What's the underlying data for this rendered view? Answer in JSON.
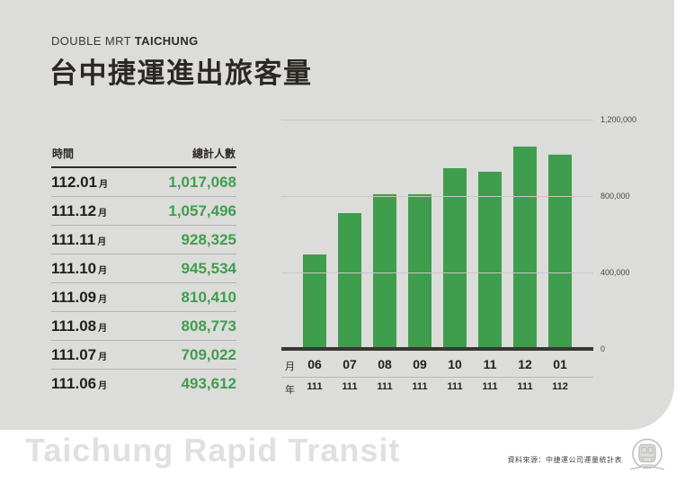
{
  "header": {
    "kicker_regular": "DOUBLE MRT",
    "kicker_bold": "TAICHUNG",
    "title": "台中捷運進出旅客量"
  },
  "table": {
    "col_time": "時間",
    "col_total": "總計人數",
    "month_suffix": "月",
    "rows": [
      {
        "period": "112.01",
        "value": "1,017,068"
      },
      {
        "period": "111.12",
        "value": "1,057,496"
      },
      {
        "period": "111.11",
        "value": "928,325"
      },
      {
        "period": "111.10",
        "value": "945,534"
      },
      {
        "period": "111.09",
        "value": "810,410"
      },
      {
        "period": "111.08",
        "value": "808,773"
      },
      {
        "period": "111.07",
        "value": "709,022"
      },
      {
        "period": "111.06",
        "value": "493,612"
      }
    ]
  },
  "chart_data": {
    "type": "bar",
    "title": "台中捷運進出旅客量",
    "categories": [
      "06",
      "07",
      "08",
      "09",
      "10",
      "11",
      "12",
      "01"
    ],
    "years": [
      "111",
      "111",
      "111",
      "111",
      "111",
      "111",
      "111",
      "112"
    ],
    "values": [
      493612,
      709022,
      808773,
      810410,
      945534,
      928325,
      1057496,
      1017068
    ],
    "ylim": [
      0,
      1200000
    ],
    "yticks": [
      {
        "label": "1,200,000",
        "value": 1200000
      },
      {
        "label": "800,000",
        "value": 800000
      },
      {
        "label": "400,000",
        "value": 400000
      },
      {
        "label": "0",
        "value": 0
      }
    ],
    "month_axis_label": "月",
    "year_axis_label": "年",
    "bar_color": "#3f9e4d",
    "grid": true,
    "legend": "none"
  },
  "footer": {
    "watermark": "Taichung Rapid Transit",
    "source": "資料來源：中捷運公司運量統計表"
  },
  "colors": {
    "panel_bg": "#dcdcda",
    "accent_green": "#3f9e4d",
    "text_dark": "#2b2824",
    "watermark_gray": "#e0e0e0"
  }
}
